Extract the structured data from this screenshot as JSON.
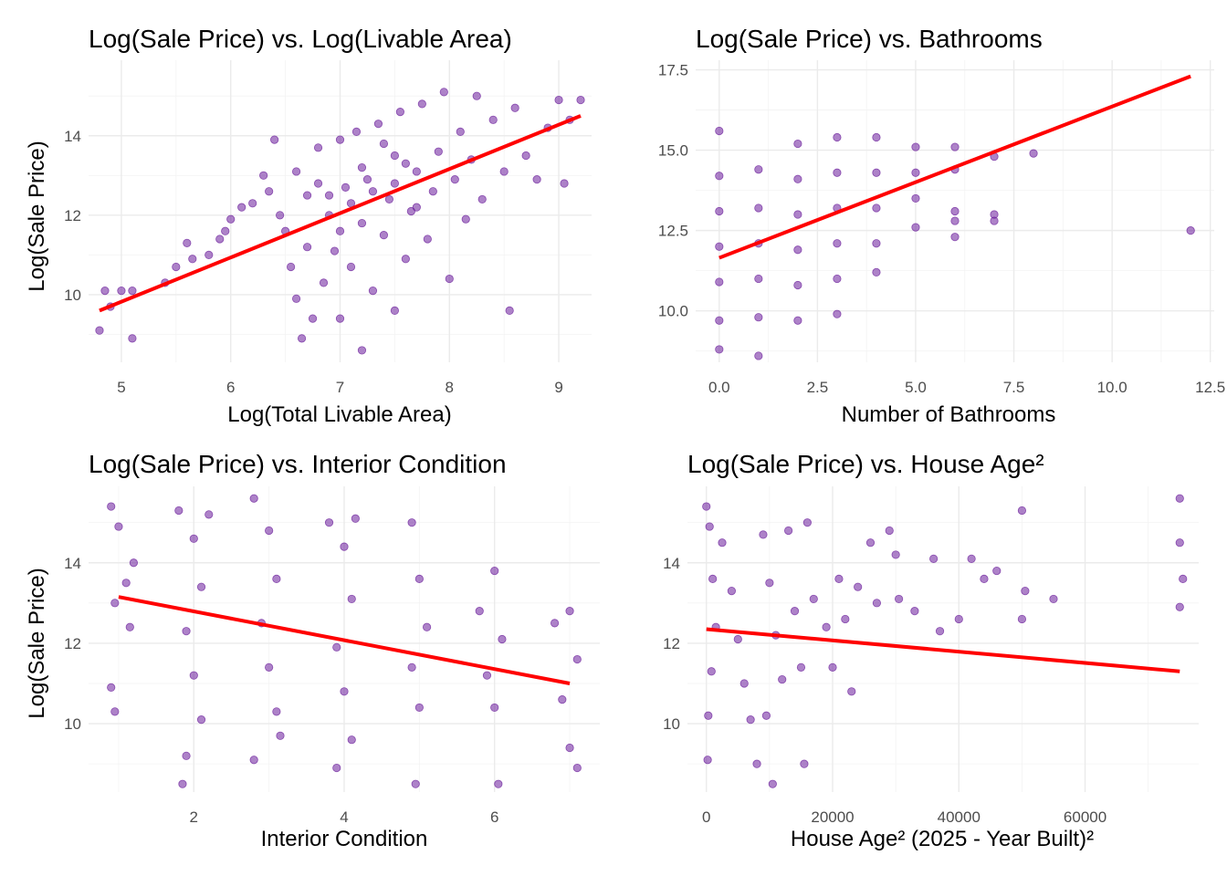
{
  "colors": {
    "points": "#6a1b9a",
    "fit_line": "#ff0000",
    "grid": "#ebebeb",
    "tick_text": "#4d4d4d",
    "background": "#ffffff"
  },
  "chart_data": [
    {
      "id": "area",
      "type": "scatter",
      "title": "Log(Sale Price) vs. Log(Livable Area)",
      "xlabel": "Log(Total Livable Area)",
      "ylabel": "Log(Sale Price)",
      "xlim": [
        4.7,
        9.3
      ],
      "ylim": [
        8.3,
        15.9
      ],
      "x_ticks": [
        5,
        6,
        7,
        8,
        9
      ],
      "x_tick_labels": [
        "5",
        "6",
        "7",
        "8",
        "9"
      ],
      "y_ticks": [
        10,
        12,
        14
      ],
      "y_tick_labels": [
        "10",
        "12",
        "14"
      ],
      "grid": true,
      "legend": "none",
      "points": [
        [
          4.8,
          9.1
        ],
        [
          4.85,
          10.1
        ],
        [
          4.9,
          9.7
        ],
        [
          5.0,
          10.1
        ],
        [
          5.1,
          8.9
        ],
        [
          5.1,
          10.1
        ],
        [
          5.4,
          10.3
        ],
        [
          5.5,
          10.7
        ],
        [
          5.6,
          11.3
        ],
        [
          5.65,
          10.9
        ],
        [
          5.8,
          11.0
        ],
        [
          5.9,
          11.4
        ],
        [
          5.95,
          11.6
        ],
        [
          6.0,
          11.9
        ],
        [
          6.1,
          12.2
        ],
        [
          6.2,
          12.3
        ],
        [
          6.3,
          13.0
        ],
        [
          6.35,
          12.6
        ],
        [
          6.4,
          13.9
        ],
        [
          6.45,
          12.0
        ],
        [
          6.5,
          11.6
        ],
        [
          6.55,
          10.7
        ],
        [
          6.6,
          9.9
        ],
        [
          6.6,
          13.1
        ],
        [
          6.65,
          8.9
        ],
        [
          6.7,
          12.5
        ],
        [
          6.7,
          11.2
        ],
        [
          6.75,
          9.4
        ],
        [
          6.8,
          13.7
        ],
        [
          6.85,
          10.3
        ],
        [
          6.9,
          12.0
        ],
        [
          6.95,
          11.1
        ],
        [
          7.0,
          13.9
        ],
        [
          7.0,
          9.4
        ],
        [
          7.05,
          12.7
        ],
        [
          7.1,
          10.7
        ],
        [
          7.15,
          14.1
        ],
        [
          7.2,
          11.8
        ],
        [
          7.2,
          8.6
        ],
        [
          7.25,
          12.9
        ],
        [
          7.3,
          10.1
        ],
        [
          7.35,
          14.3
        ],
        [
          7.4,
          11.5
        ],
        [
          7.45,
          12.4
        ],
        [
          7.5,
          13.5
        ],
        [
          7.5,
          9.6
        ],
        [
          7.55,
          14.6
        ],
        [
          7.6,
          10.9
        ],
        [
          7.65,
          12.1
        ],
        [
          7.7,
          13.1
        ],
        [
          7.75,
          14.8
        ],
        [
          7.8,
          11.4
        ],
        [
          7.85,
          12.6
        ],
        [
          7.9,
          13.6
        ],
        [
          7.95,
          15.1
        ],
        [
          8.0,
          10.4
        ],
        [
          8.05,
          12.9
        ],
        [
          8.1,
          14.1
        ],
        [
          8.15,
          11.9
        ],
        [
          8.2,
          13.4
        ],
        [
          8.25,
          15.0
        ],
        [
          8.3,
          12.4
        ],
        [
          8.4,
          14.4
        ],
        [
          8.5,
          13.1
        ],
        [
          8.55,
          9.6
        ],
        [
          8.6,
          14.7
        ],
        [
          8.7,
          13.5
        ],
        [
          8.8,
          12.9
        ],
        [
          8.9,
          14.2
        ],
        [
          9.0,
          14.9
        ],
        [
          9.05,
          12.8
        ],
        [
          9.1,
          14.4
        ],
        [
          9.2,
          14.9
        ],
        [
          6.9,
          12.5
        ],
        [
          7.1,
          12.3
        ],
        [
          7.3,
          12.6
        ],
        [
          7.5,
          12.8
        ],
        [
          7.7,
          12.2
        ],
        [
          7.0,
          11.6
        ],
        [
          7.2,
          13.2
        ],
        [
          7.4,
          13.8
        ],
        [
          6.8,
          12.8
        ],
        [
          7.6,
          13.3
        ]
      ],
      "fit_line": [
        [
          4.8,
          9.6
        ],
        [
          9.2,
          14.5
        ]
      ]
    },
    {
      "id": "bath",
      "type": "scatter",
      "title": "Log(Sale Price) vs. Bathrooms",
      "xlabel": "Number of Bathrooms",
      "ylabel": "",
      "xlim": [
        -0.6,
        12.6
      ],
      "ylim": [
        8.4,
        17.8
      ],
      "x_ticks": [
        0,
        2.5,
        5,
        7.5,
        10,
        12.5
      ],
      "x_tick_labels": [
        "0.0",
        "2.5",
        "5.0",
        "7.5",
        "10.0",
        "12.5"
      ],
      "y_ticks": [
        10,
        12.5,
        15,
        17.5
      ],
      "y_tick_labels": [
        "10.0",
        "12.5",
        "15.0",
        "17.5"
      ],
      "grid": true,
      "legend": "none",
      "points": [
        [
          0,
          15.6
        ],
        [
          0,
          14.2
        ],
        [
          0,
          13.1
        ],
        [
          0,
          12.0
        ],
        [
          0,
          10.9
        ],
        [
          0,
          9.7
        ],
        [
          0,
          8.8
        ],
        [
          1,
          14.4
        ],
        [
          1,
          13.2
        ],
        [
          1,
          12.1
        ],
        [
          1,
          11.0
        ],
        [
          1,
          9.8
        ],
        [
          1,
          8.6
        ],
        [
          2,
          15.2
        ],
        [
          2,
          14.1
        ],
        [
          2,
          13.0
        ],
        [
          2,
          11.9
        ],
        [
          2,
          10.8
        ],
        [
          2,
          9.7
        ],
        [
          3,
          15.4
        ],
        [
          3,
          14.3
        ],
        [
          3,
          13.2
        ],
        [
          3,
          12.1
        ],
        [
          3,
          11.0
        ],
        [
          3,
          9.9
        ],
        [
          4,
          15.4
        ],
        [
          4,
          14.3
        ],
        [
          4,
          13.2
        ],
        [
          4,
          12.1
        ],
        [
          4,
          11.2
        ],
        [
          5,
          15.1
        ],
        [
          5,
          14.3
        ],
        [
          5,
          13.5
        ],
        [
          5,
          12.6
        ],
        [
          6,
          15.1
        ],
        [
          6,
          14.4
        ],
        [
          6,
          13.1
        ],
        [
          6,
          12.8
        ],
        [
          6,
          12.3
        ],
        [
          7,
          14.8
        ],
        [
          7,
          13.0
        ],
        [
          7,
          12.8
        ],
        [
          8,
          14.9
        ],
        [
          12,
          12.5
        ]
      ],
      "fit_line": [
        [
          0,
          11.65
        ],
        [
          12,
          17.3
        ]
      ]
    },
    {
      "id": "cond",
      "type": "scatter",
      "title": "Log(Sale Price) vs. Interior Condition",
      "xlabel": "Interior Condition",
      "ylabel": "Log(Sale Price)",
      "xlim": [
        0.6,
        7.4
      ],
      "ylim": [
        8.3,
        15.9
      ],
      "x_ticks": [
        2,
        4,
        6
      ],
      "x_tick_labels": [
        "2",
        "4",
        "6"
      ],
      "y_ticks": [
        10,
        12,
        14
      ],
      "y_tick_labels": [
        "10",
        "12",
        "14"
      ],
      "grid": true,
      "legend": "none",
      "points": [
        [
          0.9,
          15.4
        ],
        [
          1.0,
          14.9
        ],
        [
          1.1,
          13.5
        ],
        [
          0.95,
          13.0
        ],
        [
          1.15,
          12.4
        ],
        [
          0.9,
          10.9
        ],
        [
          0.95,
          10.3
        ],
        [
          1.2,
          14.0
        ],
        [
          1.8,
          15.3
        ],
        [
          2.0,
          14.6
        ],
        [
          2.1,
          13.4
        ],
        [
          1.9,
          12.3
        ],
        [
          2.0,
          11.2
        ],
        [
          2.1,
          10.1
        ],
        [
          1.9,
          9.2
        ],
        [
          1.85,
          8.5
        ],
        [
          2.2,
          15.2
        ],
        [
          2.8,
          15.6
        ],
        [
          3.0,
          14.8
        ],
        [
          3.1,
          13.6
        ],
        [
          2.9,
          12.5
        ],
        [
          3.0,
          11.4
        ],
        [
          3.1,
          10.3
        ],
        [
          2.8,
          9.1
        ],
        [
          3.15,
          9.7
        ],
        [
          3.8,
          15.0
        ],
        [
          4.0,
          14.4
        ],
        [
          4.1,
          13.1
        ],
        [
          3.9,
          11.9
        ],
        [
          4.0,
          10.8
        ],
        [
          4.1,
          9.6
        ],
        [
          3.9,
          8.9
        ],
        [
          4.15,
          15.1
        ],
        [
          4.9,
          15.0
        ],
        [
          5.0,
          13.6
        ],
        [
          5.1,
          12.4
        ],
        [
          4.9,
          11.4
        ],
        [
          5.0,
          10.4
        ],
        [
          4.95,
          8.5
        ],
        [
          5.8,
          12.8
        ],
        [
          6.0,
          13.8
        ],
        [
          6.1,
          12.1
        ],
        [
          5.9,
          11.2
        ],
        [
          6.0,
          10.4
        ],
        [
          6.05,
          8.5
        ],
        [
          6.8,
          12.5
        ],
        [
          7.0,
          12.8
        ],
        [
          7.1,
          11.6
        ],
        [
          6.9,
          10.6
        ],
        [
          7.0,
          9.4
        ],
        [
          7.1,
          8.9
        ]
      ],
      "fit_line": [
        [
          1,
          13.15
        ],
        [
          7,
          11.0
        ]
      ]
    },
    {
      "id": "age",
      "type": "scatter",
      "title": "Log(Sale Price) vs. House Age²",
      "xlabel": "House Age² (2025 - Year Built)²",
      "ylabel": "",
      "xlim": [
        -3000,
        78000
      ],
      "ylim": [
        8.3,
        15.9
      ],
      "x_ticks": [
        0,
        20000,
        40000,
        60000
      ],
      "x_tick_labels": [
        "0",
        "20000",
        "40000",
        "60000"
      ],
      "y_ticks": [
        10,
        12,
        14
      ],
      "y_tick_labels": [
        "10",
        "12",
        "14"
      ],
      "grid": true,
      "legend": "none",
      "points": [
        [
          0,
          15.4
        ],
        [
          500,
          14.9
        ],
        [
          1000,
          13.6
        ],
        [
          1500,
          12.4
        ],
        [
          800,
          11.3
        ],
        [
          300,
          10.2
        ],
        [
          200,
          9.1
        ],
        [
          2500,
          14.5
        ],
        [
          4000,
          13.3
        ],
        [
          5000,
          12.1
        ],
        [
          6000,
          11.0
        ],
        [
          7000,
          10.1
        ],
        [
          8000,
          9.0
        ],
        [
          9000,
          14.7
        ],
        [
          10000,
          13.5
        ],
        [
          11000,
          12.2
        ],
        [
          12000,
          11.1
        ],
        [
          9500,
          10.2
        ],
        [
          10500,
          8.5
        ],
        [
          13000,
          14.8
        ],
        [
          14000,
          12.8
        ],
        [
          15000,
          11.4
        ],
        [
          15500,
          9.0
        ],
        [
          16000,
          15.0
        ],
        [
          17000,
          13.1
        ],
        [
          19000,
          12.4
        ],
        [
          20000,
          11.4
        ],
        [
          21000,
          13.6
        ],
        [
          22000,
          12.6
        ],
        [
          23000,
          10.8
        ],
        [
          24000,
          13.4
        ],
        [
          26000,
          14.5
        ],
        [
          27000,
          13.0
        ],
        [
          29000,
          14.8
        ],
        [
          30000,
          14.2
        ],
        [
          30500,
          13.1
        ],
        [
          33000,
          12.8
        ],
        [
          36000,
          14.1
        ],
        [
          37000,
          12.3
        ],
        [
          40000,
          12.6
        ],
        [
          42000,
          14.1
        ],
        [
          44000,
          13.6
        ],
        [
          46000,
          13.8
        ],
        [
          50000,
          15.3
        ],
        [
          50500,
          13.3
        ],
        [
          50000,
          12.6
        ],
        [
          55000,
          13.1
        ],
        [
          75000,
          15.6
        ],
        [
          75000,
          14.5
        ],
        [
          75500,
          13.6
        ],
        [
          75000,
          12.9
        ]
      ],
      "fit_line": [
        [
          0,
          12.35
        ],
        [
          75000,
          11.3
        ]
      ]
    }
  ]
}
